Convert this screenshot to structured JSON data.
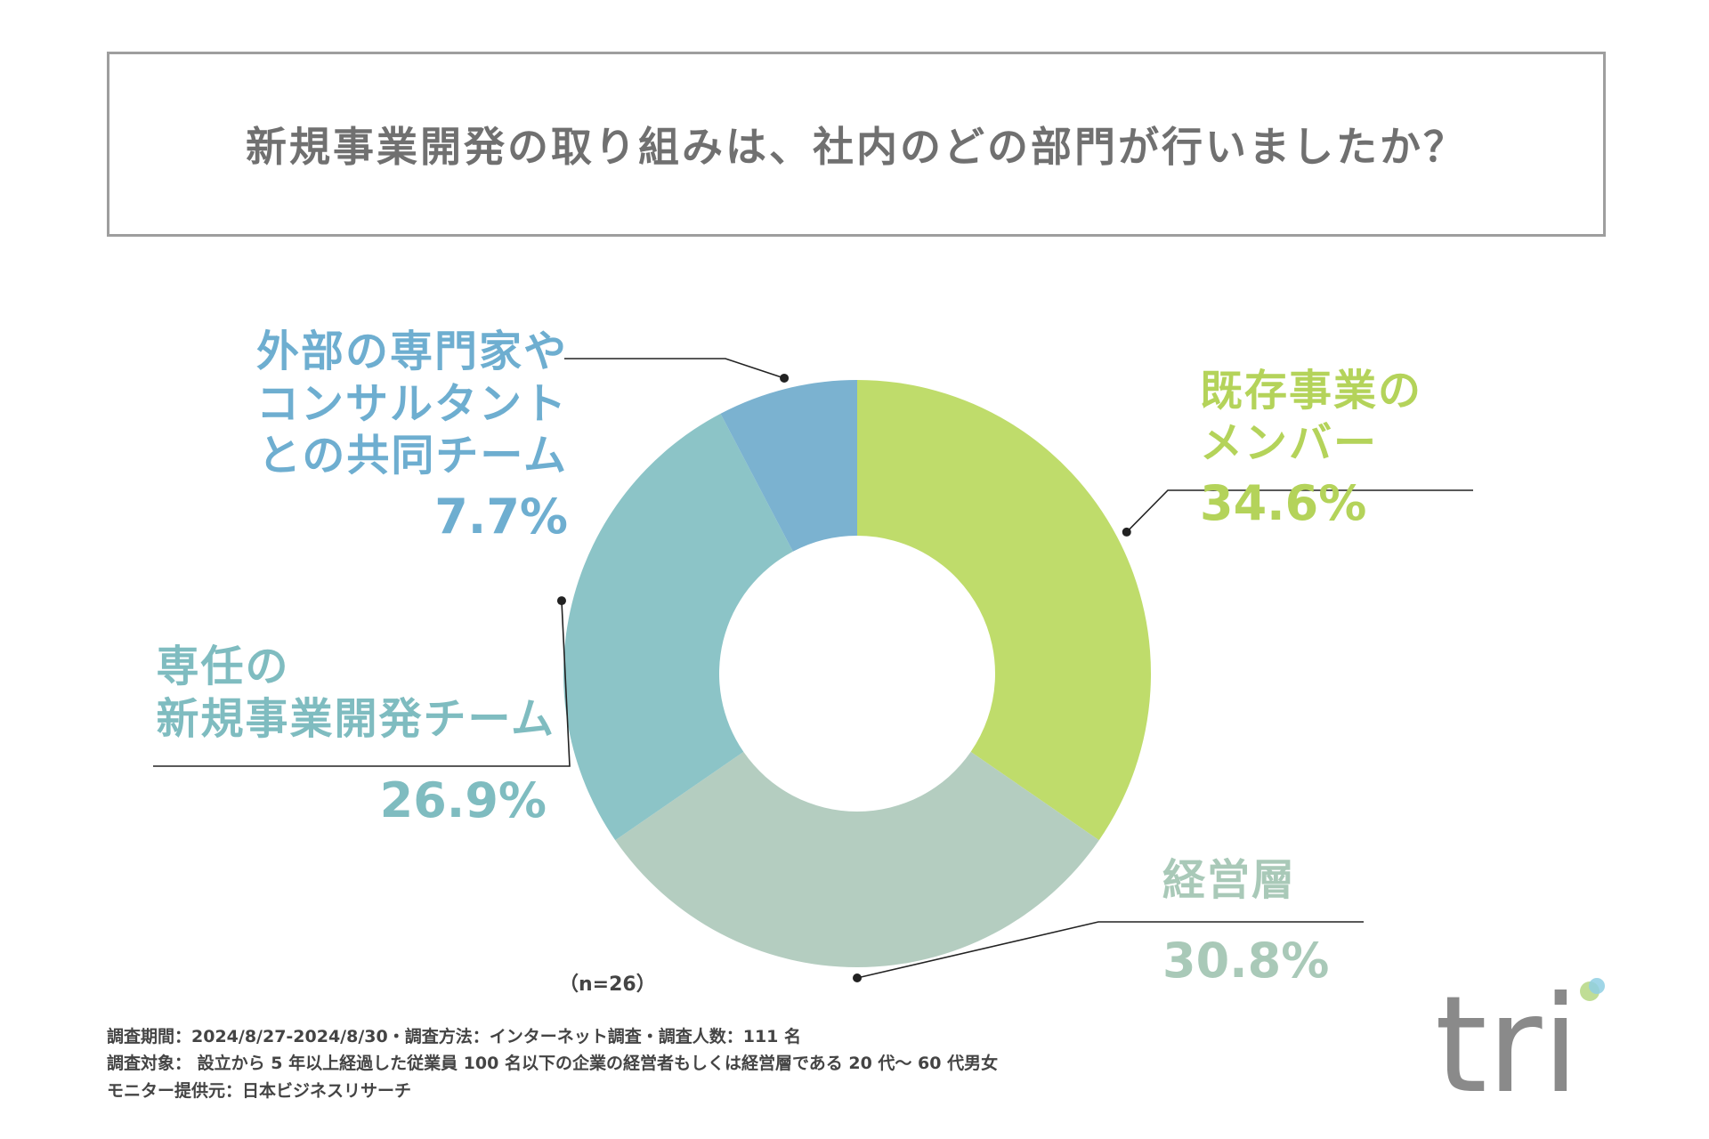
{
  "title": "新規事業開発の取り組みは、社内のどの部門が行いましたか？",
  "chart_data": {
    "type": "pie",
    "title": "新規事業開発の取り組みは、社内のどの部門が行いましたか？",
    "categories": [
      "既存事業のメンバー",
      "経営層",
      "専任の新規事業開発チーム",
      "外部の専門家やコンサルタントとの共同チーム"
    ],
    "values": [
      34.6,
      30.8,
      26.9,
      7.7
    ],
    "unit": "%",
    "colors": [
      "#bfdc6b",
      "#b4cdc0",
      "#8cc4c7",
      "#7bb2d0"
    ],
    "donut": true
  },
  "labels": [
    {
      "name_lines": [
        "既存事業の",
        "メンバー"
      ],
      "pct": "34.6%",
      "color": "#b4d35a"
    },
    {
      "name_lines": [
        "経営層"
      ],
      "pct": "30.8%",
      "color": "#a9c9b8"
    },
    {
      "name_lines": [
        "専任の",
        "新規事業開発チーム"
      ],
      "pct": "26.9%",
      "color": "#7fbcc0"
    },
    {
      "name_lines": [
        "外部の専門家や",
        "コンサルタント",
        "との共同チーム"
      ],
      "pct": "7.7%",
      "color": "#6eaed0"
    }
  ],
  "sample_size": "（n=26）",
  "footnotes": [
    "調査期間：2024/8/27-2024/8/30・調査方法：インターネット調査・調査人数：111 名",
    "調査対象： 設立から 5 年以上経過した従業員 100 名以下の企業の経営者もしくは経営層である 20 代〜 60 代男女",
    "モニター提供元：日本ビジネスリサーチ"
  ],
  "logo": {
    "text": "tri",
    "color": "#8a8a8a",
    "dot_colors": [
      "#b9d98a",
      "#8fcfe3"
    ]
  }
}
